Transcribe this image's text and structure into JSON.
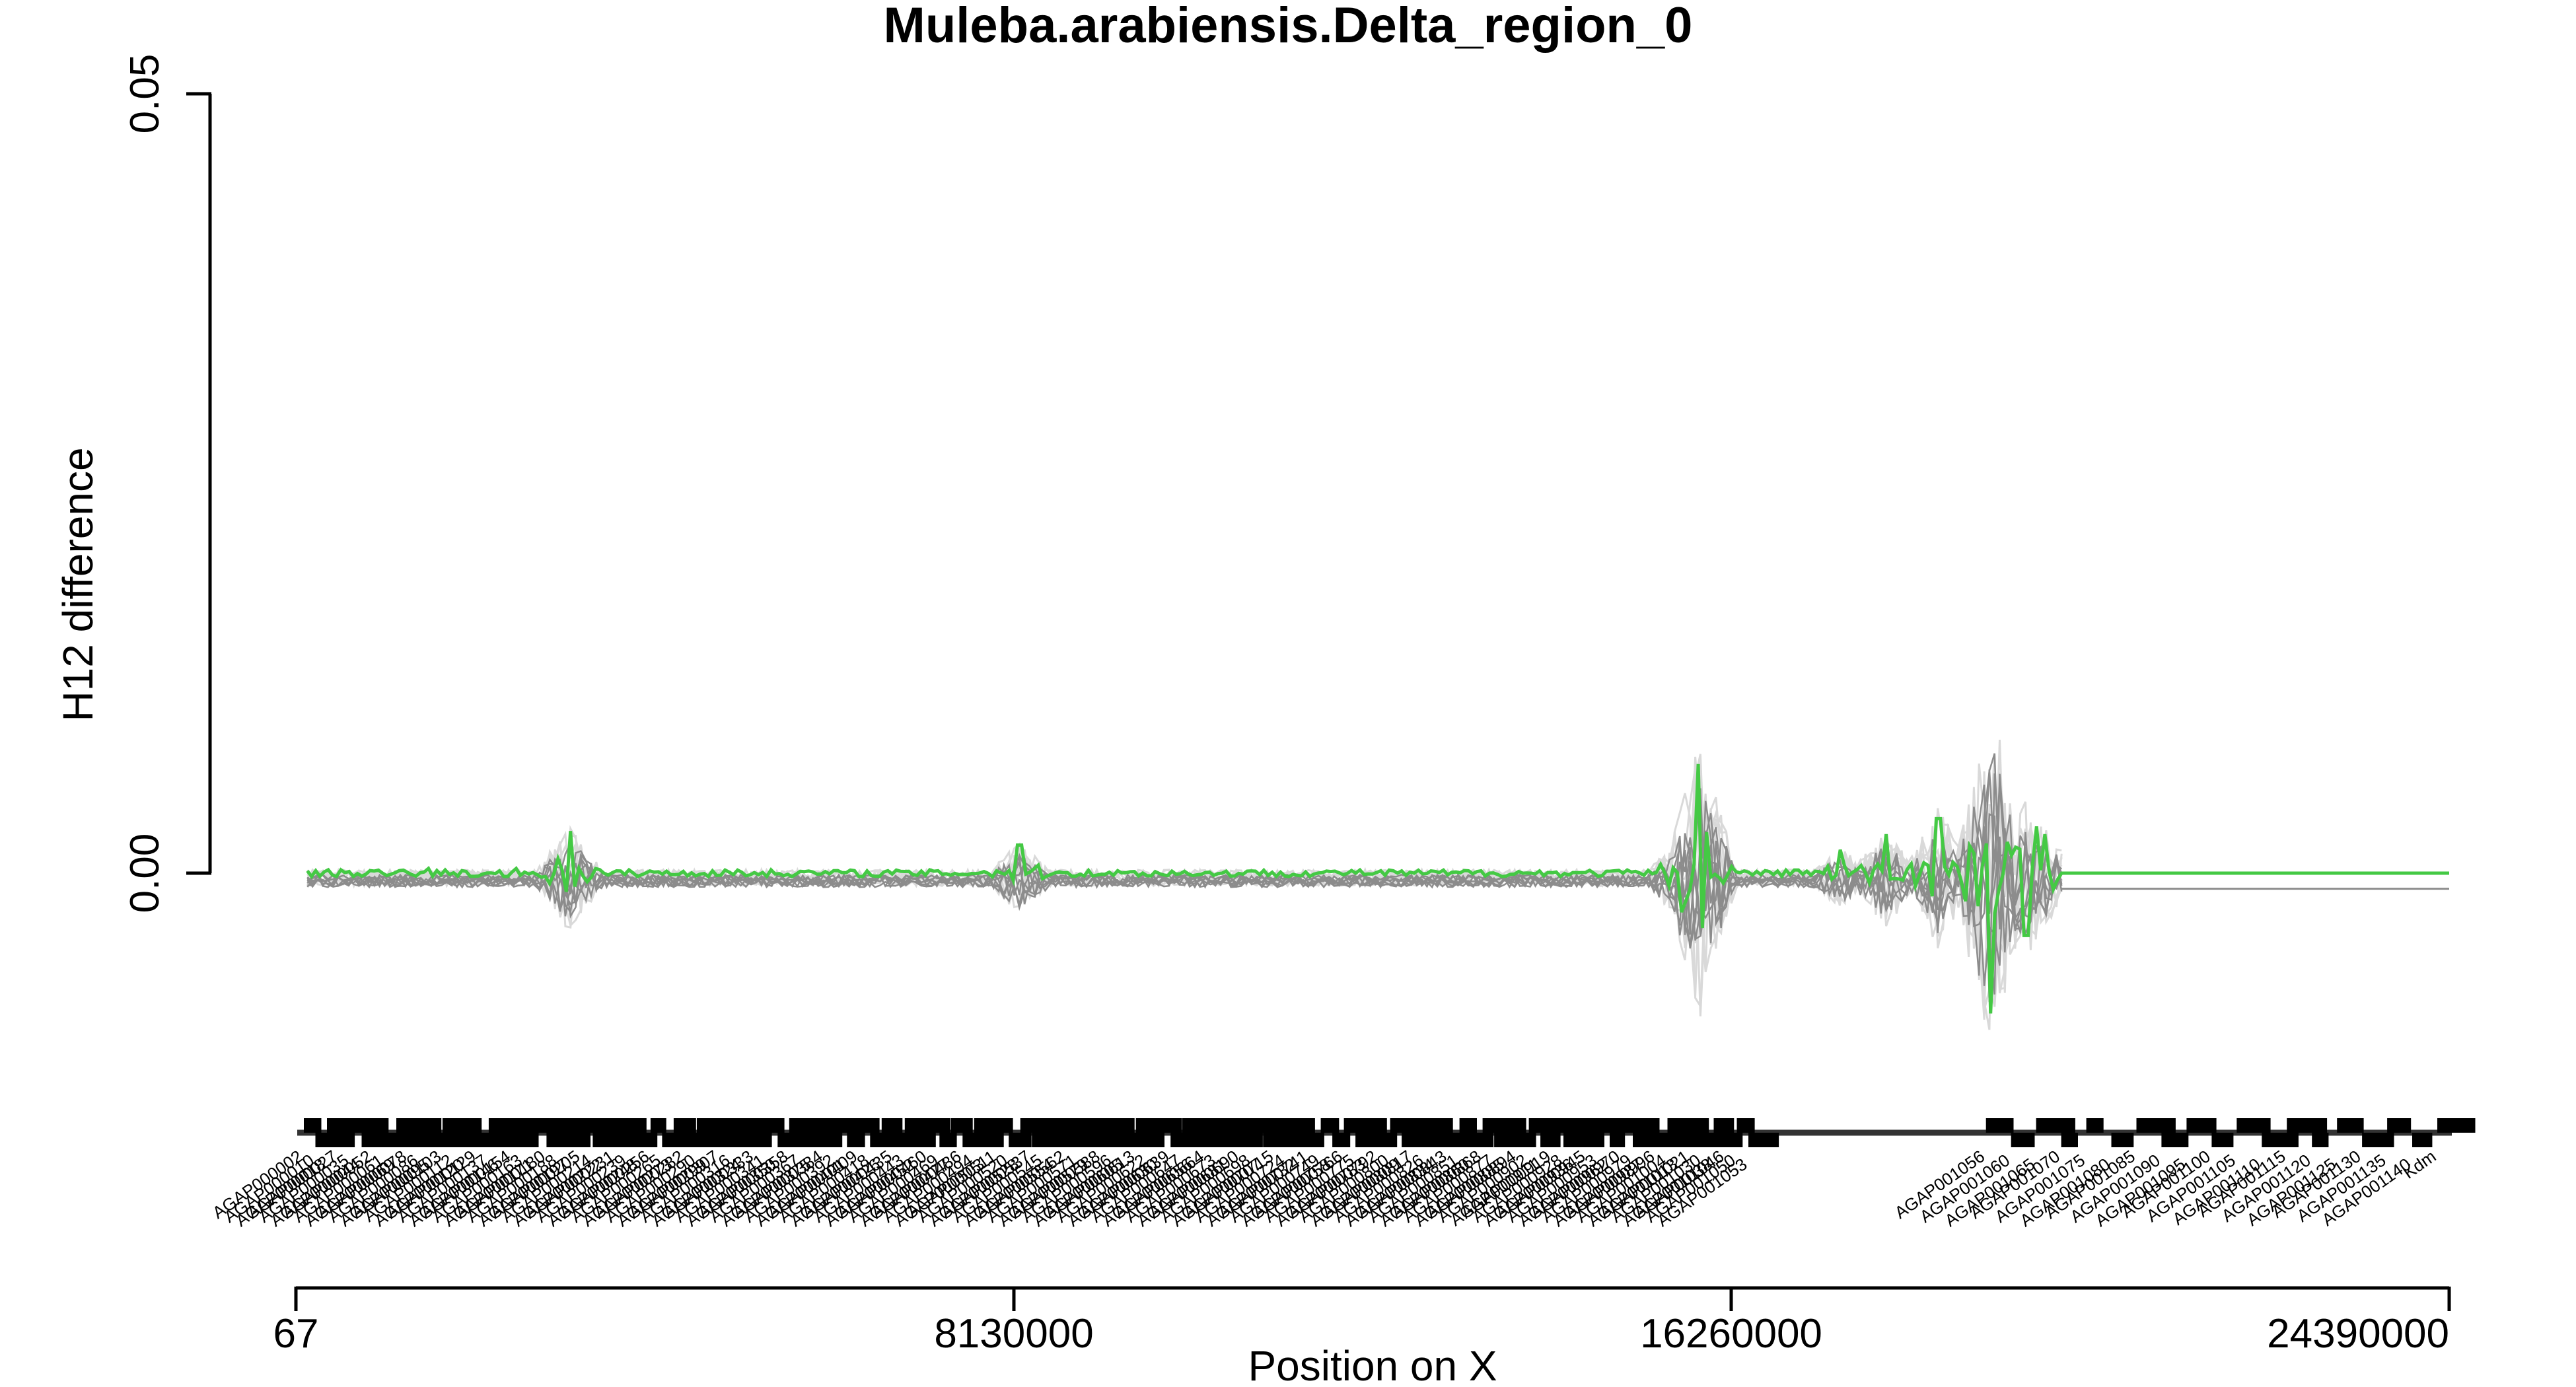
{
  "chart_data": {
    "type": "line",
    "title": "Muleba.arabiensis.Delta_region_0",
    "xlabel": "Position on X",
    "ylabel": "H12 difference",
    "xlim": [
      67,
      24390000
    ],
    "ylim": [
      0.0,
      0.05
    ],
    "x_ticks": [
      "67",
      "8130000",
      "16260000",
      "24390000"
    ],
    "y_ticks": [
      "0.00",
      "0.05"
    ],
    "grid": false,
    "colors": {
      "focal_series": "#44c944",
      "permutation_series": "#8c8c8c",
      "permutation_band": "#d9d9d9",
      "gene_track": "#000000"
    },
    "series": [
      {
        "values_description_skip": true,
        "x": [
          1000000,
          1500000,
          2000000,
          2500000,
          3000000,
          3050000,
          3100000,
          3200000,
          3500000,
          5000000,
          6000000,
          7000000,
          7800000,
          8200000,
          9500000,
          10500000,
          12000000,
          13500000,
          15500000,
          15700000,
          15900000,
          16300000,
          17000000,
          17500000,
          18000000,
          18300000,
          18600000,
          18900000,
          19100000,
          19200000,
          19400000,
          19600000,
          19700000,
          19800000,
          20000000,
          24390000
        ],
        "values": [
          0.0,
          0.0003,
          -0.0002,
          0.0003,
          0.0002,
          -0.0012,
          0.0027,
          0.0003,
          0.0,
          0.0002,
          0.0001,
          -0.0001,
          0.0001,
          0.0018,
          0.0001,
          0.0,
          0.0,
          0.0,
          0.0,
          -0.0025,
          0.007,
          0.0001,
          0.0002,
          0.0015,
          0.0025,
          0.0006,
          0.0035,
          -0.0018,
          0.0004,
          -0.009,
          0.002,
          -0.004,
          0.003,
          0.0025,
          0.0,
          0.0
        ]
      }
    ],
    "permutation_baseline": -0.001,
    "genes": [
      "AGAP000002",
      "AGAP000010",
      "AGAP000018",
      "AGAP000027",
      "AGAP000035",
      "AGAP000044",
      "AGAP000052",
      "AGAP000061",
      "AGAP000069",
      "AGAP000078",
      "AGAP000086",
      "AGAP000095",
      "AGAP000103",
      "AGAP000112",
      "AGAP000120",
      "AGAP000129",
      "AGAP000137",
      "AGAP000146",
      "AGAP000154",
      "AGAP000163",
      "AGAP000171",
      "AGAP000180",
      "AGAP000188",
      "AGAP000197",
      "AGAP000205",
      "AGAP000214",
      "AGAP000222",
      "AGAP000231",
      "AGAP000239",
      "AGAP000248",
      "AGAP000256",
      "AGAP000265",
      "AGAP000273",
      "AGAP000282",
      "AGAP000290",
      "AGAP000299",
      "AGAP000307",
      "AGAP000316",
      "AGAP000324",
      "AGAP000333",
      "AGAP000341",
      "AGAP000350",
      "AGAP000358",
      "AGAP000367",
      "AGAP000375",
      "AGAP000384",
      "AGAP000392",
      "AGAP000401",
      "AGAP000409",
      "AGAP000418",
      "AGAP000426",
      "AGAP000435",
      "AGAP000443",
      "AGAP000452",
      "AGAP000460",
      "AGAP000469",
      "AGAP000477",
      "AGAP000486",
      "AGAP000494",
      "AGAP000503",
      "AGAP000511",
      "AGAP000520",
      "AGAP000528",
      "AGAP000537",
      "AGAP000545",
      "AGAP000554",
      "AGAP000562",
      "AGAP000571",
      "AGAP000579",
      "AGAP000588",
      "AGAP000596",
      "AGAP000605",
      "AGAP000613",
      "AGAP000622",
      "AGAP000630",
      "AGAP000639",
      "AGAP000647",
      "AGAP000656",
      "AGAP000664",
      "AGAP000673",
      "AGAP000681",
      "AGAP000690",
      "AGAP000698",
      "AGAP000707",
      "AGAP000715",
      "AGAP000724",
      "AGAP000732",
      "AGAP000741",
      "AGAP000749",
      "AGAP000758",
      "AGAP000766",
      "AGAP000775",
      "AGAP000783",
      "AGAP000792",
      "AGAP000800",
      "AGAP000809",
      "AGAP000817",
      "AGAP000826",
      "AGAP000834",
      "AGAP000843",
      "AGAP000851",
      "AGAP000860",
      "AGAP000868",
      "AGAP000877",
      "AGAP000885",
      "AGAP000894",
      "AGAP000902",
      "AGAP000911",
      "AGAP000919",
      "AGAP000928",
      "AGAP000936",
      "AGAP000945",
      "AGAP000953",
      "AGAP000962",
      "AGAP000970",
      "AGAP000979",
      "AGAP000987",
      "AGAP000996",
      "AGAP001004",
      "AGAP001013",
      "AGAP001021",
      "AGAP001030",
      "AGAP001038",
      "AGAP001046",
      "AGAP001050",
      "AGAP001053",
      "AGAP001056",
      "AGAP001060",
      "AGAP001065",
      "AGAP001070",
      "AGAP001075",
      "AGAP001080",
      "AGAP001085",
      "AGAP001090",
      "AGAP001095",
      "AGAP001100",
      "AGAP001105",
      "AGAP001110",
      "AGAP001115",
      "AGAP001120",
      "AGAP001125",
      "AGAP001130",
      "AGAP001135",
      "AGAP001140",
      "Kdm"
    ]
  }
}
